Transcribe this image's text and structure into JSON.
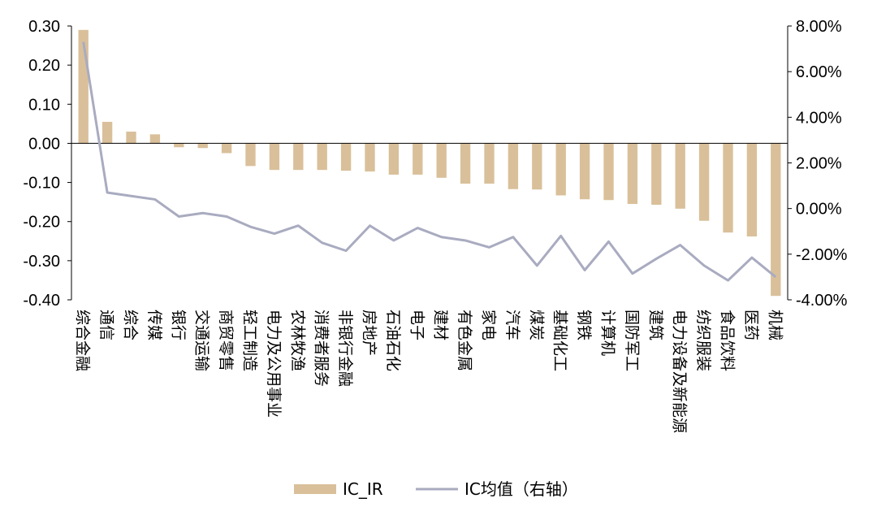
{
  "chart_data": {
    "type": "bar+line",
    "categories": [
      "综合金融",
      "通信",
      "综合",
      "传媒",
      "银行",
      "交通运输",
      "商贸零售",
      "轻工制造",
      "电力及公用事业",
      "农林牧渔",
      "消费者服务",
      "非银行金融",
      "房地产",
      "石油石化",
      "电子",
      "建材",
      "有色金属",
      "家电",
      "汽车",
      "煤炭",
      "基础化工",
      "钢铁",
      "计算机",
      "国防军工",
      "建筑",
      "电力设备及新能源",
      "纺织服装",
      "食品饮料",
      "医药",
      "机械"
    ],
    "series": [
      {
        "name": "IC_IR",
        "type": "bar",
        "axis": "left",
        "color": "#d9c09a",
        "values": [
          0.29,
          0.055,
          0.03,
          0.023,
          -0.01,
          -0.012,
          -0.025,
          -0.058,
          -0.068,
          -0.068,
          -0.068,
          -0.07,
          -0.072,
          -0.08,
          -0.08,
          -0.088,
          -0.103,
          -0.103,
          -0.117,
          -0.118,
          -0.133,
          -0.143,
          -0.145,
          -0.155,
          -0.157,
          -0.167,
          -0.198,
          -0.228,
          -0.238,
          -0.39
        ]
      },
      {
        "name": "IC均值（右轴）",
        "type": "line",
        "axis": "right",
        "color": "#a9abc0",
        "values": [
          7.3,
          0.7,
          0.55,
          0.4,
          -0.35,
          -0.2,
          -0.35,
          -0.8,
          -1.1,
          -0.75,
          -1.5,
          -1.85,
          -0.75,
          -1.4,
          -0.85,
          -1.25,
          -1.4,
          -1.7,
          -1.25,
          -2.5,
          -1.2,
          -2.7,
          -1.45,
          -2.85,
          -2.2,
          -1.6,
          -2.5,
          -3.15,
          -2.15,
          -3.0
        ]
      }
    ],
    "y_left": {
      "ylim": [
        -0.4,
        0.3
      ],
      "ticks": [
        "0.30",
        "0.20",
        "0.10",
        "0.00",
        "-0.10",
        "-0.20",
        "-0.30",
        "-0.40"
      ]
    },
    "y_right": {
      "ylim": [
        -4.0,
        8.0
      ],
      "ticks": [
        "8.00%",
        "6.00%",
        "4.00%",
        "2.00%",
        "0.00%",
        "-2.00%",
        "-4.00%"
      ]
    },
    "legend": {
      "placement": "bottom-center",
      "items": [
        "IC_IR",
        "IC均值（右轴）"
      ]
    },
    "grid": false
  }
}
